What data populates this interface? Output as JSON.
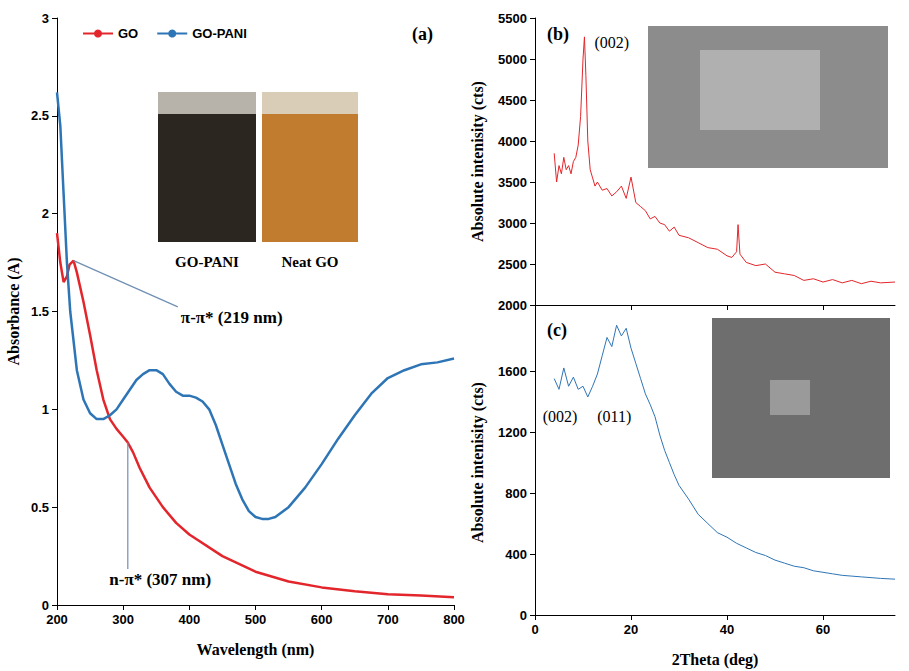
{
  "chart_data": [
    {
      "type": "line",
      "title": "(a)",
      "x_label": "Wavelength (nm)",
      "y_label": "Absorbance (A)",
      "xlim": [
        200,
        800
      ],
      "xticks": [
        200,
        300,
        400,
        500,
        600,
        700,
        800
      ],
      "ylim": [
        0,
        3
      ],
      "yticks": [
        0,
        0.5,
        1,
        1.5,
        2,
        2.5,
        3
      ],
      "grid": false,
      "legend": "upper left",
      "series": [
        {
          "name": "GO",
          "color": "#e3262b",
          "x": [
            200,
            205,
            210,
            215,
            219,
            225,
            230,
            240,
            250,
            260,
            270,
            280,
            290,
            300,
            307,
            315,
            325,
            340,
            360,
            380,
            400,
            450,
            500,
            550,
            600,
            650,
            700,
            750,
            800
          ],
          "values": [
            1.9,
            1.75,
            1.65,
            1.68,
            1.74,
            1.76,
            1.7,
            1.55,
            1.38,
            1.2,
            1.05,
            0.95,
            0.9,
            0.86,
            0.83,
            0.78,
            0.7,
            0.6,
            0.5,
            0.42,
            0.36,
            0.25,
            0.17,
            0.12,
            0.09,
            0.07,
            0.055,
            0.048,
            0.04
          ]
        },
        {
          "name": "GO-PANI",
          "color": "#2e75b6",
          "x": [
            200,
            205,
            210,
            215,
            220,
            230,
            240,
            250,
            260,
            270,
            280,
            290,
            300,
            310,
            320,
            330,
            340,
            350,
            360,
            370,
            380,
            390,
            400,
            410,
            420,
            430,
            440,
            450,
            460,
            470,
            480,
            490,
            500,
            510,
            520,
            530,
            550,
            575,
            600,
            625,
            650,
            675,
            700,
            725,
            750,
            775,
            800
          ],
          "values": [
            2.62,
            2.45,
            2.1,
            1.75,
            1.5,
            1.2,
            1.05,
            0.98,
            0.95,
            0.95,
            0.97,
            1.0,
            1.05,
            1.1,
            1.15,
            1.18,
            1.2,
            1.2,
            1.18,
            1.13,
            1.09,
            1.07,
            1.07,
            1.06,
            1.04,
            1.0,
            0.92,
            0.82,
            0.72,
            0.62,
            0.54,
            0.48,
            0.45,
            0.44,
            0.44,
            0.45,
            0.5,
            0.6,
            0.72,
            0.85,
            0.97,
            1.08,
            1.16,
            1.2,
            1.23,
            1.24,
            1.26
          ]
        }
      ],
      "annotations": [
        {
          "text": "π-π* (219 nm)",
          "x": 464,
          "y": 1.47,
          "point": [
            225,
            1.76
          ]
        },
        {
          "text": "n-π* (307 nm)",
          "x": 356,
          "y": 0.13,
          "point": [
            307,
            0.83
          ]
        }
      ],
      "inset_labels": [
        "GO-PANI",
        "Neat GO"
      ]
    },
    {
      "type": "line",
      "title": "(b)",
      "y_label": "Absolute intenisity (cts)",
      "xlim": [
        0,
        75
      ],
      "xticks": [
        0,
        20,
        40,
        60
      ],
      "ylim": [
        2000,
        5500
      ],
      "yticks": [
        2000,
        2500,
        3000,
        3500,
        4000,
        4500,
        5000,
        5500
      ],
      "grid": false,
      "tick_labels": "y",
      "series": [
        {
          "color": "#e3262b",
          "x": [
            4,
            4.5,
            5,
            5.5,
            6,
            6.5,
            7,
            7.5,
            8,
            8.5,
            9,
            9.5,
            10,
            10.3,
            10.6,
            11,
            11.5,
            12,
            12.5,
            13,
            14,
            15,
            16,
            17,
            18,
            19,
            20,
            21,
            22,
            23,
            24,
            25,
            26,
            27,
            28,
            29,
            30,
            32,
            34,
            36,
            38,
            40,
            41,
            42,
            42.3,
            42.7,
            44,
            46,
            48,
            50,
            52,
            54,
            56,
            58,
            60,
            62,
            64,
            66,
            68,
            70,
            72,
            75
          ],
          "values": [
            3850,
            3500,
            3700,
            3600,
            3800,
            3650,
            3700,
            3600,
            3750,
            3800,
            3950,
            4300,
            5000,
            5270,
            4800,
            4000,
            3650,
            3550,
            3450,
            3500,
            3400,
            3420,
            3330,
            3380,
            3450,
            3300,
            3560,
            3250,
            3200,
            3150,
            3050,
            3080,
            3000,
            2980,
            2900,
            2950,
            2850,
            2820,
            2760,
            2700,
            2680,
            2600,
            2580,
            2650,
            2980,
            2620,
            2520,
            2480,
            2500,
            2400,
            2380,
            2360,
            2300,
            2320,
            2280,
            2310,
            2270,
            2300,
            2260,
            2290,
            2270,
            2280
          ]
        }
      ],
      "annotations": [
        {
          "text": "(002)",
          "x": 16,
          "y": 5200
        }
      ]
    },
    {
      "type": "line",
      "title": "(c)",
      "x_label": "2Theta (deg)",
      "y_label": "Absolute intenisity (cts)",
      "xlim": [
        0,
        75
      ],
      "xticks": [
        0,
        20,
        40,
        60
      ],
      "ylim": [
        0,
        2000
      ],
      "yticks": [
        0,
        400,
        800,
        1200,
        1600
      ],
      "grid": false,
      "series": [
        {
          "color": "#2e75b6",
          "x": [
            4,
            5,
            6,
            7,
            8,
            9,
            10,
            11,
            12,
            13,
            14,
            15,
            16,
            17,
            18,
            19,
            20,
            21,
            22,
            23,
            24,
            25,
            26,
            27,
            28,
            29,
            30,
            32,
            34,
            36,
            38,
            40,
            42,
            44,
            46,
            48,
            50,
            52,
            54,
            56,
            58,
            60,
            62,
            64,
            66,
            68,
            70,
            72,
            75
          ],
          "values": [
            1550,
            1480,
            1620,
            1500,
            1560,
            1480,
            1500,
            1430,
            1500,
            1580,
            1700,
            1820,
            1760,
            1900,
            1830,
            1880,
            1750,
            1650,
            1550,
            1450,
            1380,
            1300,
            1180,
            1080,
            1000,
            920,
            850,
            760,
            660,
            600,
            540,
            510,
            470,
            440,
            410,
            390,
            360,
            340,
            320,
            310,
            290,
            280,
            270,
            260,
            255,
            250,
            245,
            240,
            235
          ]
        }
      ],
      "annotations": [
        {
          "text": "(002)",
          "x": 5.2,
          "y": 1300
        },
        {
          "text": "(011)",
          "x": 16.5,
          "y": 1300
        }
      ]
    }
  ]
}
